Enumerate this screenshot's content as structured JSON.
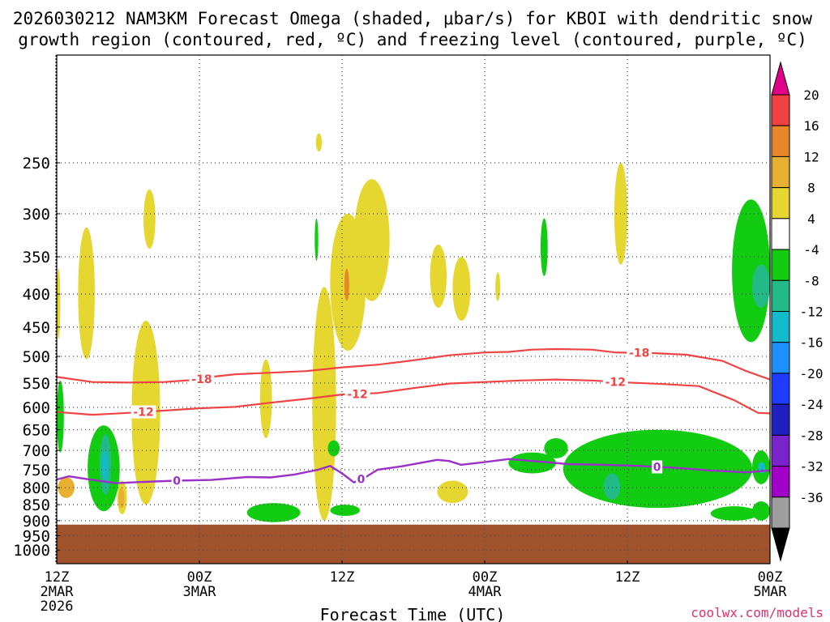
{
  "chart_data": {
    "type": "heatmap",
    "title_line1": "2026030212 NAM3KM Forecast Omega (shaded, μbar/s) for KBOI with dendritic snow",
    "title_line2": "growth region (contoured, red, ºC) and freezing level (contoured, purple, ºC)",
    "xlabel": "Forecast Time (UTC)",
    "credit": "coolwx.com/models",
    "x_axis": {
      "range_hours": [
        0,
        60
      ],
      "ticks": [
        {
          "hour": 0,
          "line1": "12Z",
          "line2": "2MAR",
          "line3": "2026"
        },
        {
          "hour": 12,
          "line1": "00Z",
          "line2": "3MAR",
          "line3": ""
        },
        {
          "hour": 24,
          "line1": "12Z",
          "line2": "",
          "line3": ""
        },
        {
          "hour": 36,
          "line1": "00Z",
          "line2": "4MAR",
          "line3": ""
        },
        {
          "hour": 48,
          "line1": "12Z",
          "line2": "",
          "line3": ""
        },
        {
          "hour": 60,
          "line1": "00Z",
          "line2": "5MAR",
          "line3": ""
        }
      ]
    },
    "y_axis": {
      "unit": "hPa",
      "scale": "log-pressure",
      "range": [
        1050,
        170
      ],
      "ticks": [
        "250",
        "300",
        "350",
        "400",
        "450",
        "500",
        "550",
        "600",
        "650",
        "700",
        "750",
        "800",
        "850",
        "900",
        "950",
        "1000"
      ]
    },
    "colorbar": {
      "labels": [
        "20",
        "16",
        "12",
        "8",
        "4",
        "-4",
        "-8",
        "-12",
        "-16",
        "-20",
        "-24",
        "-28",
        "-32",
        "-36"
      ],
      "colors": [
        "#e0008a",
        "#f04040",
        "#e8862a",
        "#e8b030",
        "#e6d630",
        "#ffffff",
        "#11cc11",
        "#22bb88",
        "#11bbcc",
        "#1e90ff",
        "#1e3cff",
        "#2020c0",
        "#7a22cc",
        "#a000c8",
        "#9e9e9e",
        "#000000"
      ]
    },
    "terrain": {
      "top_hpa": 913,
      "color": "#a0522d"
    },
    "omega_regions": [
      {
        "color": "#e6d630",
        "t0": 1.8,
        "t1": 3.2,
        "p_top": 315,
        "p_bot": 505
      },
      {
        "color": "#e6d630",
        "t0": 7.3,
        "t1": 8.3,
        "p_top": 275,
        "p_bot": 340
      },
      {
        "color": "#e6d630",
        "t0": 6.3,
        "t1": 8.7,
        "p_top": 440,
        "p_bot": 850
      },
      {
        "color": "#e6d630",
        "t0": 5.1,
        "t1": 5.9,
        "p_top": 780,
        "p_bot": 880
      },
      {
        "color": "#e6d630",
        "t0": 17.1,
        "t1": 18.1,
        "p_top": 505,
        "p_bot": 670
      },
      {
        "color": "#e6d630",
        "t0": 21.8,
        "t1": 22.3,
        "p_top": 225,
        "p_bot": 240
      },
      {
        "color": "#e6d630",
        "t0": 21.5,
        "t1": 23.5,
        "p_top": 390,
        "p_bot": 900
      },
      {
        "color": "#e6d630",
        "t0": 23.0,
        "t1": 26.0,
        "p_top": 300,
        "p_bot": 490
      },
      {
        "color": "#e6d630",
        "t0": 25.0,
        "t1": 28.0,
        "p_top": 265,
        "p_bot": 410
      },
      {
        "color": "#e6d630",
        "t0": 31.4,
        "t1": 32.8,
        "p_top": 335,
        "p_bot": 420
      },
      {
        "color": "#e6d630",
        "t0": 33.3,
        "t1": 34.8,
        "p_top": 350,
        "p_bot": 440
      },
      {
        "color": "#e6d630",
        "t0": 36.9,
        "t1": 37.3,
        "p_top": 370,
        "p_bot": 410
      },
      {
        "color": "#e6d630",
        "t0": 32.0,
        "t1": 34.6,
        "p_top": 780,
        "p_bot": 845
      },
      {
        "color": "#e6d630",
        "t0": 46.9,
        "t1": 48.0,
        "p_top": 250,
        "p_bot": 360
      },
      {
        "color": "#e6d630",
        "t0": 0.0,
        "t1": 0.3,
        "p_top": 365,
        "p_bot": 470
      },
      {
        "color": "#e8b030",
        "t0": 0.1,
        "t1": 1.5,
        "p_top": 770,
        "p_bot": 830
      },
      {
        "color": "#e8b030",
        "t0": 5.2,
        "t1": 5.7,
        "p_top": 800,
        "p_bot": 860
      },
      {
        "color": "#e8862a",
        "t0": 24.2,
        "t1": 24.6,
        "p_top": 365,
        "p_bot": 410
      },
      {
        "color": "#11cc11",
        "t0": 0.0,
        "t1": 0.6,
        "p_top": 545,
        "p_bot": 705
      },
      {
        "color": "#11cc11",
        "t0": 2.6,
        "t1": 5.3,
        "p_top": 640,
        "p_bot": 870
      },
      {
        "color": "#11cc11",
        "t0": 16.0,
        "t1": 20.5,
        "p_top": 845,
        "p_bot": 905
      },
      {
        "color": "#11cc11",
        "t0": 22.8,
        "t1": 23.8,
        "p_top": 675,
        "p_bot": 715
      },
      {
        "color": "#11cc11",
        "t0": 23.0,
        "t1": 25.5,
        "p_top": 850,
        "p_bot": 885
      },
      {
        "color": "#11cc11",
        "t0": 21.7,
        "t1": 22.0,
        "p_top": 305,
        "p_bot": 355
      },
      {
        "color": "#11cc11",
        "t0": 41.0,
        "t1": 43.0,
        "p_top": 670,
        "p_bot": 720
      },
      {
        "color": "#11cc11",
        "t0": 42.6,
        "t1": 58.5,
        "p_top": 650,
        "p_bot": 860
      },
      {
        "color": "#11cc11",
        "t0": 38.0,
        "t1": 42.0,
        "p_top": 705,
        "p_bot": 760
      },
      {
        "color": "#11cc11",
        "t0": 55.0,
        "t1": 59.0,
        "p_top": 855,
        "p_bot": 900
      },
      {
        "color": "#11cc11",
        "t0": 58.5,
        "t1": 60.0,
        "p_top": 700,
        "p_bot": 790
      },
      {
        "color": "#11cc11",
        "t0": 58.5,
        "t1": 60.0,
        "p_top": 840,
        "p_bot": 900
      },
      {
        "color": "#11cc11",
        "t0": 40.7,
        "t1": 41.3,
        "p_top": 305,
        "p_bot": 375
      },
      {
        "color": "#11cc11",
        "t0": 56.8,
        "t1": 60.0,
        "p_top": 285,
        "p_bot": 475
      },
      {
        "color": "#22bb88",
        "t0": 3.6,
        "t1": 4.6,
        "p_top": 660,
        "p_bot": 820
      },
      {
        "color": "#22bb88",
        "t0": 46.0,
        "t1": 47.4,
        "p_top": 760,
        "p_bot": 835
      },
      {
        "color": "#22bb88",
        "t0": 58.5,
        "t1": 60.0,
        "p_top": 360,
        "p_bot": 420
      },
      {
        "color": "#11bbcc",
        "t0": 3.8,
        "t1": 4.3,
        "p_top": 700,
        "p_bot": 780
      },
      {
        "color": "#11bbcc",
        "t0": 59.0,
        "t1": 59.6,
        "p_top": 730,
        "p_bot": 760
      }
    ],
    "dgz_contours": [
      {
        "label": "-18",
        "points": [
          [
            0,
            538
          ],
          [
            3,
            548
          ],
          [
            6,
            549
          ],
          [
            9,
            548
          ],
          [
            12,
            543
          ],
          [
            13,
            538
          ],
          [
            15,
            533
          ],
          [
            18,
            530
          ],
          [
            21,
            527
          ],
          [
            24,
            520
          ],
          [
            27,
            515
          ],
          [
            30,
            507
          ],
          [
            33,
            498
          ],
          [
            36,
            493
          ],
          [
            38,
            492
          ],
          [
            40,
            488
          ],
          [
            42,
            487
          ],
          [
            45,
            488
          ],
          [
            47,
            493
          ],
          [
            50,
            494
          ],
          [
            53,
            497
          ],
          [
            56,
            508
          ],
          [
            58,
            527
          ],
          [
            60,
            543
          ]
        ],
        "label_at": [
          [
            12.2,
            543
          ],
          [
            49.0,
            494
          ]
        ]
      },
      {
        "label": "-12",
        "points": [
          [
            0,
            610
          ],
          [
            3,
            616
          ],
          [
            6,
            612
          ],
          [
            9,
            607
          ],
          [
            12,
            602
          ],
          [
            15,
            599
          ],
          [
            18,
            590
          ],
          [
            21,
            582
          ],
          [
            24,
            573
          ],
          [
            27,
            570
          ],
          [
            30,
            560
          ],
          [
            33,
            551
          ],
          [
            36,
            548
          ],
          [
            39,
            545
          ],
          [
            42,
            543
          ],
          [
            45,
            545
          ],
          [
            48,
            549
          ],
          [
            51,
            552
          ],
          [
            54,
            556
          ],
          [
            57,
            585
          ],
          [
            59,
            612
          ],
          [
            60,
            613
          ]
        ],
        "label_at": [
          [
            7.3,
            611
          ],
          [
            25.3,
            572
          ],
          [
            47.0,
            548
          ]
        ]
      }
    ],
    "freezing_contour": {
      "label": "0",
      "points": [
        [
          0,
          777
        ],
        [
          1,
          768
        ],
        [
          3,
          778
        ],
        [
          5,
          787
        ],
        [
          7,
          784
        ],
        [
          10,
          780
        ],
        [
          13,
          778
        ],
        [
          16,
          770
        ],
        [
          18,
          771
        ],
        [
          20,
          763
        ],
        [
          22,
          750
        ],
        [
          23,
          740
        ],
        [
          24,
          760
        ],
        [
          25,
          785
        ],
        [
          26,
          770
        ],
        [
          27,
          750
        ],
        [
          29,
          741
        ],
        [
          32,
          724
        ],
        [
          33,
          727
        ],
        [
          34,
          737
        ],
        [
          36,
          730
        ],
        [
          38,
          722
        ],
        [
          40,
          727
        ],
        [
          43,
          735
        ],
        [
          46,
          737
        ],
        [
          49,
          740
        ],
        [
          52,
          745
        ],
        [
          55,
          752
        ],
        [
          58,
          757
        ],
        [
          60,
          752
        ]
      ],
      "label_at": [
        [
          10.1,
          780
        ],
        [
          25.6,
          783
        ],
        [
          50.5,
          743
        ]
      ]
    }
  }
}
